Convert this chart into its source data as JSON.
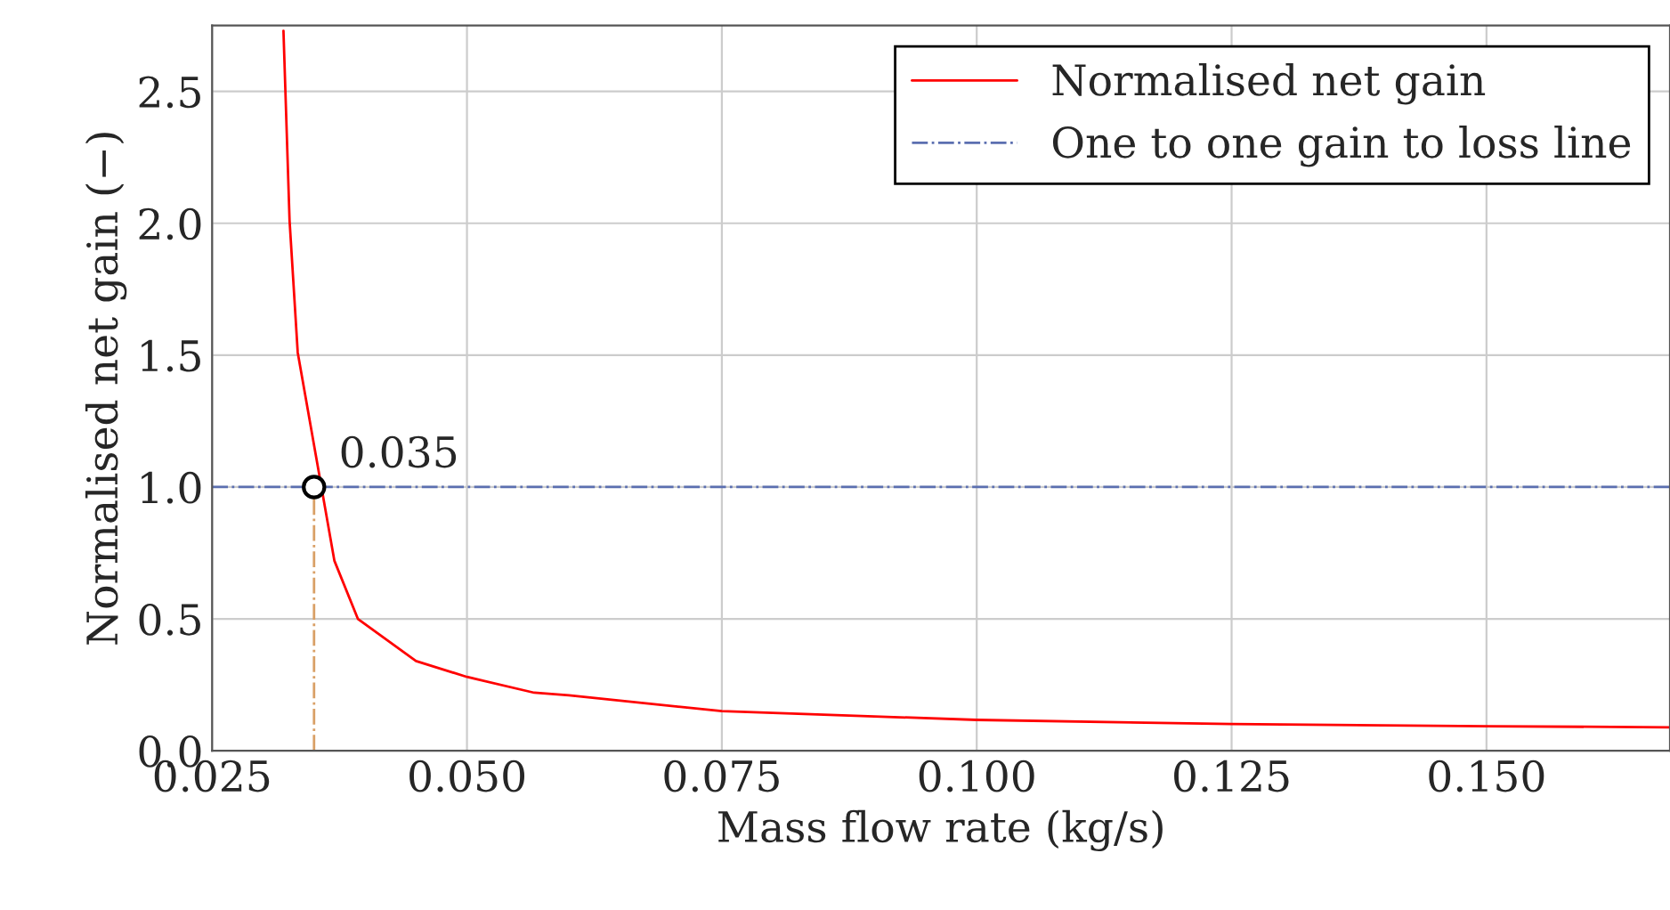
{
  "chart_data": {
    "type": "line",
    "xlabel": "Mass flow rate (kg/s)",
    "ylabel": "Normalised net gain (−)",
    "xlim": [
      0.025,
      0.168
    ],
    "ylim": [
      0,
      2.75
    ],
    "xticks": [
      {
        "value": 0.025,
        "label": "0.025"
      },
      {
        "value": 0.05,
        "label": "0.050"
      },
      {
        "value": 0.075,
        "label": "0.075"
      },
      {
        "value": 0.1,
        "label": "0.100"
      },
      {
        "value": 0.125,
        "label": "0.125"
      },
      {
        "value": 0.15,
        "label": "0.150"
      }
    ],
    "yticks": [
      {
        "value": 0,
        "label": "0.0"
      },
      {
        "value": 0.5,
        "label": "0.5"
      },
      {
        "value": 1,
        "label": "1.0"
      },
      {
        "value": 1.5,
        "label": "1.5"
      },
      {
        "value": 2,
        "label": "2.0"
      },
      {
        "value": 2.5,
        "label": "2.5"
      }
    ],
    "grid": true,
    "legend": "top right",
    "series": [
      {
        "name": "Normalised net gain",
        "color": "#ff0000",
        "line_style": "solid",
        "x": [
          0.032,
          0.0326,
          0.0334,
          0.037,
          0.0393,
          0.045,
          0.05,
          0.0566,
          0.06,
          0.075,
          0.1,
          0.125,
          0.15,
          0.168
        ],
        "values": [
          2.73,
          2.01,
          1.51,
          0.72,
          0.5,
          0.34,
          0.28,
          0.22,
          0.21,
          0.15,
          0.117,
          0.101,
          0.093,
          0.089
        ]
      },
      {
        "name": "One to one gain to loss line",
        "color": "#5b6fb0",
        "line_style": "dashdot",
        "x": [
          0.025,
          0.168
        ],
        "values": [
          1,
          1
        ]
      },
      {
        "color": "#d9a066",
        "line_style": "dashdot",
        "x": [
          0.035,
          0.035
        ],
        "values": [
          0,
          1
        ]
      },
      {
        "type": "scatter",
        "color": "#000000",
        "marker": "circle",
        "x": [
          0.035
        ],
        "values": [
          1
        ]
      }
    ],
    "annotations": [
      {
        "text": "0.035",
        "x": 0.035,
        "y": 1
      }
    ]
  }
}
